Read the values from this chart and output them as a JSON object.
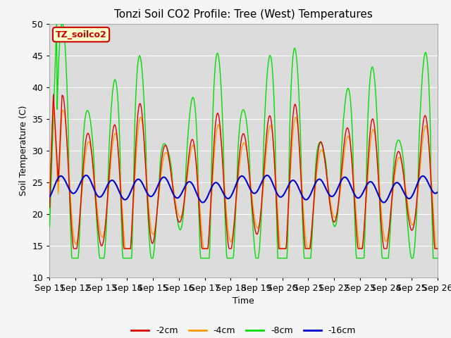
{
  "title": "Tonzi Soil CO2 Profile: Tree (West) Temperatures",
  "xlabel": "Time",
  "ylabel": "Soil Temperature (C)",
  "ylim": [
    10,
    50
  ],
  "x_tick_labels": [
    "Sep 11",
    "Sep 12",
    "Sep 13",
    "Sep 14",
    "Sep 15",
    "Sep 16",
    "Sep 17",
    "Sep 18",
    "Sep 19",
    "Sep 20",
    "Sep 21",
    "Sep 22",
    "Sep 23",
    "Sep 24",
    "Sep 25",
    "Sep 26"
  ],
  "colors": {
    "2cm": "#dd0000",
    "4cm": "#ff9900",
    "8cm": "#00dd00",
    "16cm": "#0000cc"
  },
  "label_box": {
    "text": "TZ_soilco2",
    "bg_color": "#ffffcc",
    "text_color": "#cc0000",
    "edge_color": "#cc0000"
  },
  "legend_labels": [
    "-2cm",
    "-4cm",
    "-8cm",
    "-16cm"
  ],
  "plot_bg_color": "#dcdcdc",
  "fig_bg_color": "#f5f5f5"
}
